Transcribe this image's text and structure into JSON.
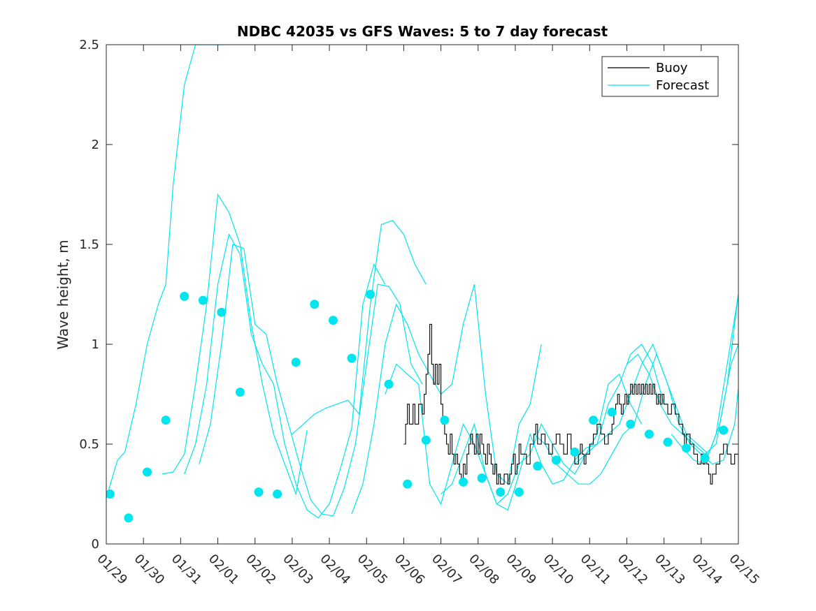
{
  "chart_data": {
    "type": "line",
    "title": "NDBC 42035 vs GFS Waves: 5 to 7 day forecast",
    "xlabel": "",
    "ylabel": "Wave height, m",
    "xlim": [
      0,
      17
    ],
    "ylim": [
      0,
      2.5
    ],
    "x_tick_labels": [
      "01/29",
      "01/30",
      "01/31",
      "02/01",
      "02/02",
      "02/03",
      "02/04",
      "02/05",
      "02/06",
      "02/07",
      "02/08",
      "02/09",
      "02/10",
      "02/11",
      "02/12",
      "02/13",
      "02/14",
      "02/15"
    ],
    "y_ticks": [
      0,
      0.5,
      1,
      1.5,
      2,
      2.5
    ],
    "y_tick_labels": [
      "0",
      "0.5",
      "1",
      "1.5",
      "2",
      "2.5"
    ],
    "legend": {
      "position": "top-right",
      "entries": [
        {
          "label": "Buoy",
          "color": "#000000"
        },
        {
          "label": "Forecast",
          "color": "#00E5EE"
        }
      ]
    },
    "colors": {
      "buoy": "#000000",
      "forecast": "#00E5EE"
    },
    "buoy": {
      "name": "Buoy",
      "x": [
        8.0,
        8.05,
        8.1,
        8.15,
        8.25,
        8.3,
        8.4,
        8.5,
        8.55,
        8.6,
        8.65,
        8.7,
        8.75,
        8.8,
        8.85,
        8.9,
        8.95,
        9.0,
        9.05,
        9.1,
        9.15,
        9.2,
        9.25,
        9.3,
        9.35,
        9.4,
        9.45,
        9.5,
        9.55,
        9.6,
        9.65,
        9.7,
        9.75,
        9.8,
        9.85,
        9.9,
        9.95,
        10.0,
        10.05,
        10.1,
        10.15,
        10.2,
        10.25,
        10.3,
        10.35,
        10.4,
        10.45,
        10.5,
        10.55,
        10.6,
        10.7,
        10.8,
        10.85,
        10.9,
        10.95,
        11.0,
        11.05,
        11.1,
        11.15,
        11.2,
        11.3,
        11.4,
        11.5,
        11.55,
        11.6,
        11.7,
        11.8,
        11.9,
        12.0,
        12.1,
        12.2,
        12.3,
        12.4,
        12.5,
        12.6,
        12.7,
        12.75,
        12.8,
        12.85,
        12.9,
        13.0,
        13.1,
        13.2,
        13.3,
        13.4,
        13.5,
        13.6,
        13.65,
        13.7,
        13.75,
        13.8,
        13.85,
        13.9,
        13.95,
        14.0,
        14.05,
        14.1,
        14.15,
        14.2,
        14.25,
        14.3,
        14.35,
        14.4,
        14.45,
        14.5,
        14.55,
        14.6,
        14.65,
        14.7,
        14.75,
        14.8,
        14.85,
        14.9,
        14.95,
        15.0,
        15.1,
        15.2,
        15.3,
        15.4,
        15.5,
        15.55,
        15.6,
        15.7,
        15.8,
        15.9,
        16.0,
        16.05,
        16.1,
        16.15,
        16.2,
        16.25,
        16.3,
        16.4,
        16.5,
        16.6,
        16.7,
        16.8,
        16.9,
        17.0
      ],
      "y": [
        0.5,
        0.6,
        0.7,
        0.6,
        0.7,
        0.6,
        0.7,
        0.65,
        0.75,
        0.85,
        0.95,
        1.1,
        0.9,
        0.8,
        0.9,
        0.8,
        0.9,
        0.7,
        0.6,
        0.55,
        0.5,
        0.45,
        0.55,
        0.45,
        0.4,
        0.45,
        0.4,
        0.35,
        0.3,
        0.4,
        0.35,
        0.45,
        0.5,
        0.55,
        0.5,
        0.45,
        0.55,
        0.45,
        0.55,
        0.5,
        0.45,
        0.4,
        0.5,
        0.45,
        0.4,
        0.35,
        0.4,
        0.3,
        0.35,
        0.3,
        0.35,
        0.3,
        0.35,
        0.4,
        0.45,
        0.35,
        0.4,
        0.5,
        0.45,
        0.45,
        0.4,
        0.5,
        0.55,
        0.6,
        0.5,
        0.55,
        0.5,
        0.45,
        0.5,
        0.55,
        0.5,
        0.45,
        0.55,
        0.45,
        0.4,
        0.45,
        0.5,
        0.45,
        0.4,
        0.45,
        0.5,
        0.55,
        0.6,
        0.55,
        0.5,
        0.55,
        0.6,
        0.65,
        0.7,
        0.75,
        0.7,
        0.65,
        0.7,
        0.75,
        0.7,
        0.75,
        0.8,
        0.75,
        0.8,
        0.75,
        0.8,
        0.75,
        0.8,
        0.75,
        0.8,
        0.75,
        0.8,
        0.75,
        0.8,
        0.75,
        0.7,
        0.75,
        0.7,
        0.75,
        0.7,
        0.65,
        0.7,
        0.65,
        0.6,
        0.55,
        0.5,
        0.55,
        0.5,
        0.45,
        0.4,
        0.45,
        0.4,
        0.45,
        0.4,
        0.35,
        0.3,
        0.35,
        0.4,
        0.45,
        0.5,
        0.45,
        0.4,
        0.45,
        0.4
      ]
    },
    "forecast_series": [
      {
        "name": "Forecast",
        "x": [
          0.0,
          0.3,
          0.5,
          0.8,
          1.1,
          1.4,
          1.6,
          1.8,
          2.1,
          2.4,
          2.7,
          3.0,
          3.2
        ],
        "y": [
          0.23,
          0.42,
          0.46,
          0.7,
          1.0,
          1.2,
          1.3,
          1.8,
          2.3,
          2.5,
          2.5,
          2.5,
          2.5
        ]
      },
      {
        "name": "Forecast",
        "x": [
          1.5,
          1.8,
          2.1,
          2.4,
          2.7,
          3.0,
          3.3,
          3.6,
          3.9,
          4.2,
          4.5,
          4.8,
          5.1,
          5.4
        ],
        "y": [
          0.35,
          0.36,
          0.45,
          0.8,
          1.2,
          1.75,
          1.66,
          1.5,
          1.1,
          0.8,
          0.55,
          0.4,
          0.25,
          0.57
        ]
      },
      {
        "name": "Forecast",
        "x": [
          2.1,
          2.4,
          2.7,
          3.0,
          3.3,
          3.6,
          3.9,
          4.2,
          4.5,
          4.8,
          5.1,
          5.4,
          5.7,
          6.0,
          6.3,
          6.6,
          6.9,
          7.2,
          7.5
        ],
        "y": [
          0.35,
          0.5,
          0.8,
          1.3,
          1.55,
          1.45,
          1.05,
          0.9,
          0.8,
          0.5,
          0.3,
          0.17,
          0.13,
          0.2,
          0.38,
          0.58,
          1.2,
          1.4,
          1.3
        ]
      },
      {
        "name": "Forecast",
        "x": [
          2.5,
          2.8,
          3.1,
          3.4,
          3.7,
          4.0,
          4.3,
          4.6,
          4.9,
          5.2,
          5.5,
          5.8,
          6.1,
          6.4,
          6.7,
          7.0,
          7.3,
          7.6,
          7.9,
          8.2,
          8.5
        ],
        "y": [
          0.4,
          0.6,
          1.0,
          1.5,
          1.48,
          1.1,
          1.05,
          0.8,
          0.6,
          0.4,
          0.22,
          0.15,
          0.14,
          0.28,
          0.5,
          0.9,
          1.3,
          1.29,
          1.2,
          0.9,
          0.8
        ]
      },
      {
        "name": "Forecast",
        "x": [
          5.0,
          5.3,
          5.6,
          5.9,
          6.2,
          6.5,
          6.8,
          7.1,
          7.4,
          7.7,
          8.0,
          8.3,
          8.6
        ],
        "y": [
          0.55,
          0.6,
          0.65,
          0.68,
          0.7,
          0.72,
          0.65,
          1.2,
          1.6,
          1.62,
          1.55,
          1.4,
          1.3
        ]
      },
      {
        "name": "Forecast",
        "x": [
          6.6,
          6.9,
          7.2,
          7.5,
          7.8,
          8.1,
          8.4,
          8.7,
          9.0,
          9.3,
          9.6,
          9.9,
          10.2,
          10.5,
          10.8,
          11.1,
          11.4,
          11.7
        ],
        "y": [
          0.15,
          0.3,
          0.6,
          1.0,
          1.2,
          1.1,
          0.95,
          0.85,
          0.75,
          0.8,
          1.1,
          1.3,
          0.75,
          0.35,
          0.3,
          0.6,
          0.7,
          1.0
        ]
      },
      {
        "name": "Forecast",
        "x": [
          7.5,
          7.8,
          8.1,
          8.4,
          8.7,
          9.0,
          9.3,
          9.6,
          9.9,
          10.2,
          10.5,
          10.8,
          11.1,
          11.4,
          11.7,
          12.0,
          12.3,
          12.6,
          12.9,
          13.2,
          13.5,
          13.8,
          14.1,
          14.4
        ],
        "y": [
          0.75,
          0.9,
          0.85,
          0.8,
          0.3,
          0.2,
          0.4,
          0.6,
          0.5,
          0.35,
          0.2,
          0.25,
          0.4,
          0.45,
          0.6,
          0.5,
          0.4,
          0.35,
          0.45,
          0.55,
          0.8,
          0.85,
          0.7,
          0.6
        ]
      },
      {
        "name": "Forecast",
        "x": [
          9.0,
          9.3,
          9.6,
          9.9,
          10.2,
          10.5,
          10.8,
          11.1,
          11.4,
          11.7,
          12.0,
          12.3,
          12.6,
          12.9,
          13.2,
          13.5,
          13.8,
          14.1,
          14.4,
          14.7,
          15.0
        ],
        "y": [
          0.25,
          0.3,
          0.45,
          0.6,
          0.35,
          0.2,
          0.17,
          0.35,
          0.55,
          0.4,
          0.3,
          0.32,
          0.42,
          0.48,
          0.5,
          0.7,
          0.8,
          0.95,
          1.0,
          0.9,
          0.7
        ]
      },
      {
        "name": "Forecast",
        "x": [
          11.5,
          11.8,
          12.1,
          12.4,
          12.7,
          13.0,
          13.3,
          13.6,
          13.9,
          14.2,
          14.5,
          14.8,
          15.1,
          15.4,
          15.7,
          16.0,
          16.3,
          16.6,
          16.9,
          17.0
        ],
        "y": [
          0.55,
          0.5,
          0.4,
          0.35,
          0.3,
          0.3,
          0.35,
          0.45,
          0.55,
          0.6,
          0.8,
          0.95,
          0.8,
          0.6,
          0.5,
          0.45,
          0.4,
          0.42,
          0.6,
          0.78
        ]
      },
      {
        "name": "Forecast",
        "x": [
          12.6,
          12.9,
          13.2,
          13.5,
          13.8,
          14.1,
          14.4,
          14.7,
          15.0,
          15.3,
          15.6,
          15.9,
          16.2,
          16.5,
          16.8,
          17.0
        ],
        "y": [
          0.4,
          0.45,
          0.5,
          0.55,
          0.6,
          0.75,
          0.9,
          1.0,
          0.85,
          0.7,
          0.55,
          0.5,
          0.45,
          0.6,
          0.9,
          1.0
        ]
      },
      {
        "name": "Forecast",
        "x": [
          14.0,
          14.3,
          14.6,
          14.9,
          15.2,
          15.5,
          15.8,
          16.1,
          16.4,
          16.7,
          17.0
        ],
        "y": [
          0.9,
          0.95,
          0.85,
          0.7,
          0.6,
          0.55,
          0.5,
          0.45,
          0.5,
          0.8,
          1.25
        ]
      },
      {
        "name": "Forecast",
        "x": [
          15.2,
          15.5,
          15.8,
          16.1,
          16.4,
          16.7,
          17.0
        ],
        "y": [
          0.55,
          0.48,
          0.42,
          0.4,
          0.55,
          0.9,
          1.25
        ]
      }
    ],
    "forecast_markers": {
      "name": "Forecast",
      "x": [
        0.1,
        0.6,
        1.1,
        1.6,
        2.1,
        2.6,
        3.1,
        3.6,
        4.1,
        4.6,
        5.1,
        5.6,
        6.1,
        6.6,
        7.1,
        7.6,
        8.1,
        8.6,
        9.1,
        9.6,
        10.1,
        10.6,
        11.1,
        11.6,
        12.1,
        12.6,
        13.1,
        13.6,
        14.1,
        14.6,
        15.1,
        15.6,
        16.1,
        16.6
      ],
      "y": [
        0.25,
        0.13,
        0.36,
        0.62,
        1.24,
        1.22,
        1.16,
        0.76,
        0.26,
        0.25,
        0.91,
        1.2,
        1.12,
        0.93,
        1.25,
        0.8,
        0.3,
        0.52,
        0.62,
        0.31,
        0.33,
        0.26,
        0.26,
        0.39,
        0.42,
        0.46,
        0.62,
        0.66,
        0.6,
        0.55,
        0.51,
        0.48,
        0.43,
        0.57
      ]
    }
  }
}
